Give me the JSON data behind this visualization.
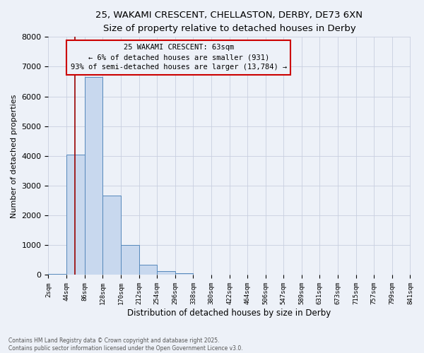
{
  "title_line1": "25, WAKAMI CRESCENT, CHELLASTON, DERBY, DE73 6XN",
  "title_line2": "Size of property relative to detached houses in Derby",
  "xlabel": "Distribution of detached houses by size in Derby",
  "ylabel": "Number of detached properties",
  "bin_edges": [
    2,
    44,
    86,
    128,
    170,
    212,
    254,
    296,
    338,
    380,
    422,
    464,
    506,
    547,
    589,
    631,
    673,
    715,
    757,
    799,
    841
  ],
  "bar_heights": [
    30,
    4050,
    6650,
    2680,
    1000,
    350,
    140,
    50,
    20,
    8,
    4,
    2,
    1,
    1,
    0,
    0,
    0,
    0,
    0,
    0
  ],
  "bar_color": "#c8d8ee",
  "bar_edge_color": "#5588bb",
  "property_size": 63,
  "vline_color": "#990000",
  "ylim": [
    0,
    8000
  ],
  "yticks": [
    0,
    1000,
    2000,
    3000,
    4000,
    5000,
    6000,
    7000,
    8000
  ],
  "grid_color": "#c8cfe0",
  "background_color": "#edf1f8",
  "annotation_title": "25 WAKAMI CRESCENT: 63sqm",
  "annotation_line1": "← 6% of detached houses are smaller (931)",
  "annotation_line2": "93% of semi-detached houses are larger (13,784) →",
  "annotation_box_color": "#cc0000",
  "footer_line1": "Contains HM Land Registry data © Crown copyright and database right 2025.",
  "footer_line2": "Contains public sector information licensed under the Open Government Licence v3.0.",
  "tick_labels": [
    "2sqm",
    "44sqm",
    "86sqm",
    "128sqm",
    "170sqm",
    "212sqm",
    "254sqm",
    "296sqm",
    "338sqm",
    "380sqm",
    "422sqm",
    "464sqm",
    "506sqm",
    "547sqm",
    "589sqm",
    "631sqm",
    "673sqm",
    "715sqm",
    "757sqm",
    "799sqm",
    "841sqm"
  ]
}
